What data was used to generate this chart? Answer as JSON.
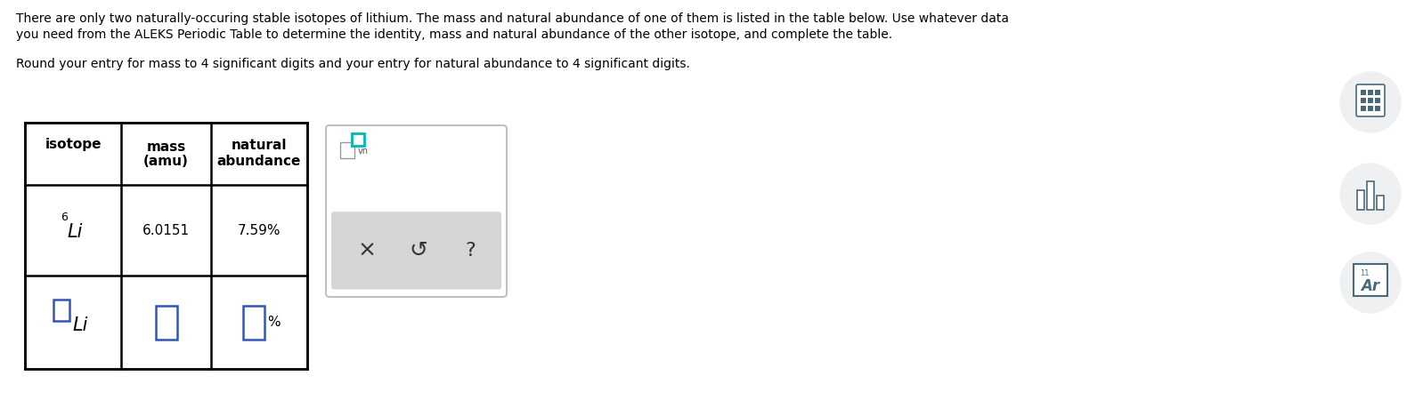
{
  "bg_color": "#ffffff",
  "text_color": "#000000",
  "title_line1": "There are only two naturally-occuring stable isotopes of lithium. The mass and natural abundance of one of them is listed in the table below. Use whatever data",
  "title_line2": "you need from the ALEKS Periodic Table to determine the identity, mass and natural abundance of the other isotope, and complete the table.",
  "subtitle": "Round your entry for mass to 4 significant digits and your entry for natural abundance to 4 significant digits.",
  "col_headers": [
    "isotope",
    "mass\n(amu)",
    "natural\nabundance"
  ],
  "row1": [
    "6Li",
    "6.0151",
    "7.59%"
  ],
  "input_color": "#3355bb",
  "icon_color": "#4a6a7a",
  "icon_bg": "#eef0f2"
}
